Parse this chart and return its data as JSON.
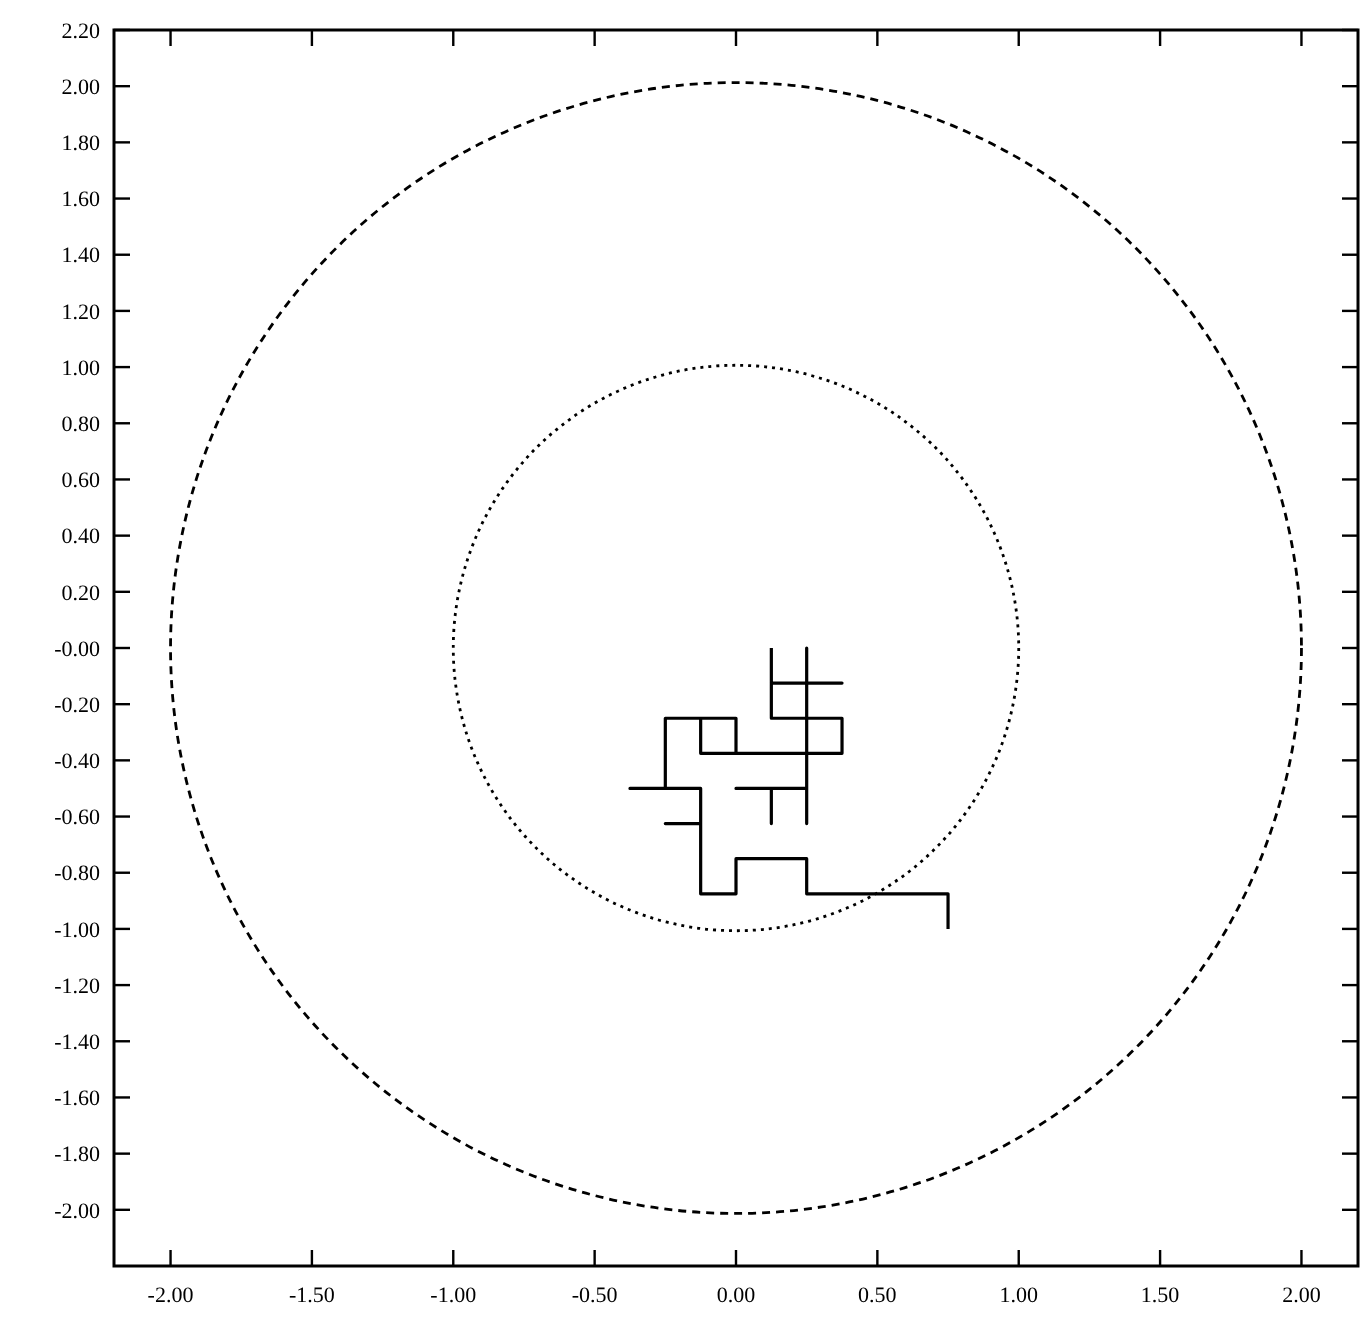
{
  "chart_data": {
    "type": "line",
    "xlim": [
      -2.2,
      2.2
    ],
    "ylim": [
      -2.2,
      2.2
    ],
    "xticks": [
      {
        "value": -2,
        "label": "-2.00"
      },
      {
        "value": -1.5,
        "label": "-1.50"
      },
      {
        "value": -1,
        "label": "-1.00"
      },
      {
        "value": -0.5,
        "label": "-0.50"
      },
      {
        "value": 0,
        "label": "0.00"
      },
      {
        "value": 0.5,
        "label": "0.50"
      },
      {
        "value": 1,
        "label": "1.00"
      },
      {
        "value": 1.5,
        "label": "1.50"
      },
      {
        "value": 2,
        "label": "2.00"
      }
    ],
    "yticks": [
      {
        "value": -2,
        "label": "-2.00"
      },
      {
        "value": -1.8,
        "label": "-1.80"
      },
      {
        "value": -1.6,
        "label": "-1.60"
      },
      {
        "value": -1.4,
        "label": "-1.40"
      },
      {
        "value": -1.2,
        "label": "-1.20"
      },
      {
        "value": -1,
        "label": "-1.00"
      },
      {
        "value": -0.8,
        "label": "-0.80"
      },
      {
        "value": -0.6,
        "label": "-0.60"
      },
      {
        "value": -0.4,
        "label": "-0.40"
      },
      {
        "value": -0.2,
        "label": "-0.20"
      },
      {
        "value": 0,
        "label": "-0.00"
      },
      {
        "value": 0.2,
        "label": "0.20"
      },
      {
        "value": 0.4,
        "label": "0.40"
      },
      {
        "value": 0.6,
        "label": "0.60"
      },
      {
        "value": 0.8,
        "label": "0.80"
      },
      {
        "value": 1,
        "label": "1.00"
      },
      {
        "value": 1.2,
        "label": "1.20"
      },
      {
        "value": 1.4,
        "label": "1.40"
      },
      {
        "value": 1.6,
        "label": "1.60"
      },
      {
        "value": 1.8,
        "label": "1.80"
      },
      {
        "value": 2,
        "label": "2.00"
      },
      {
        "value": 2.2,
        "label": "2.20"
      }
    ],
    "grid": false,
    "marker": "none",
    "series": [
      {
        "color": "#000000",
        "line_style": "solid",
        "x": [
          0.125,
          0.125,
          0.25,
          0.375,
          0.25,
          0.25,
          0.25,
          0.25,
          0.125,
          0.125,
          0.125,
          0.25,
          0.375,
          0.375,
          0.25,
          0.25,
          0.25,
          0.25,
          0.125,
          0.125,
          0.125,
          0,
          0.125,
          0.25,
          0.25,
          0.25,
          0.25,
          0.125,
          0,
          0,
          -0.125,
          -0.125,
          0,
          -0.125,
          -0.125,
          -0.25,
          -0.25,
          -0.25,
          -0.375,
          -0.25,
          -0.125,
          -0.125,
          -0.25,
          -0.125,
          -0.125,
          -0.125,
          0,
          0,
          0.125,
          0.25,
          0.25,
          0.375,
          0.5,
          0.625,
          0.75,
          0.75
        ],
        "values": [
          0,
          -0.125,
          -0.125,
          -0.125,
          -0.125,
          0,
          -0.125,
          -0.25,
          -0.25,
          -0.125,
          -0.25,
          -0.25,
          -0.25,
          -0.375,
          -0.375,
          -0.5,
          -0.625,
          -0.5,
          -0.5,
          -0.625,
          -0.5,
          -0.5,
          -0.5,
          -0.5,
          -0.375,
          -0.25,
          -0.375,
          -0.375,
          -0.375,
          -0.25,
          -0.25,
          -0.375,
          -0.375,
          -0.375,
          -0.25,
          -0.25,
          -0.375,
          -0.5,
          -0.5,
          -0.5,
          -0.5,
          -0.625,
          -0.625,
          -0.625,
          -0.75,
          -0.875,
          -0.875,
          -0.75,
          -0.75,
          -0.75,
          -0.875,
          -0.875,
          -0.875,
          -0.875,
          -0.875,
          -1
        ]
      }
    ]
  }
}
